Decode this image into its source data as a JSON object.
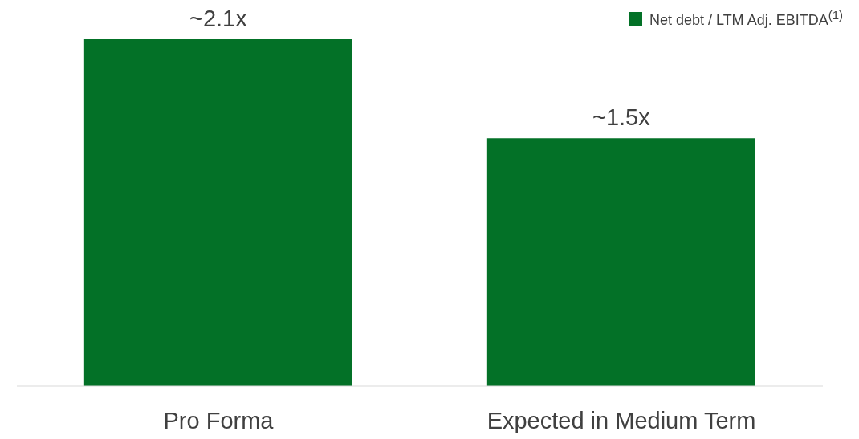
{
  "chart_data": {
    "type": "bar",
    "categories": [
      "Pro Forma",
      "Expected in Medium Term"
    ],
    "series": [
      {
        "name": "Net debt / LTM Adj. EBITDA$^{(1)}$",
        "color": "#037127",
        "values": [
          2.1,
          1.5
        ],
        "value_labels": [
          "~2.1x",
          "~1.5x"
        ]
      }
    ],
    "tick_labels": "x",
    "legend": "top right"
  }
}
